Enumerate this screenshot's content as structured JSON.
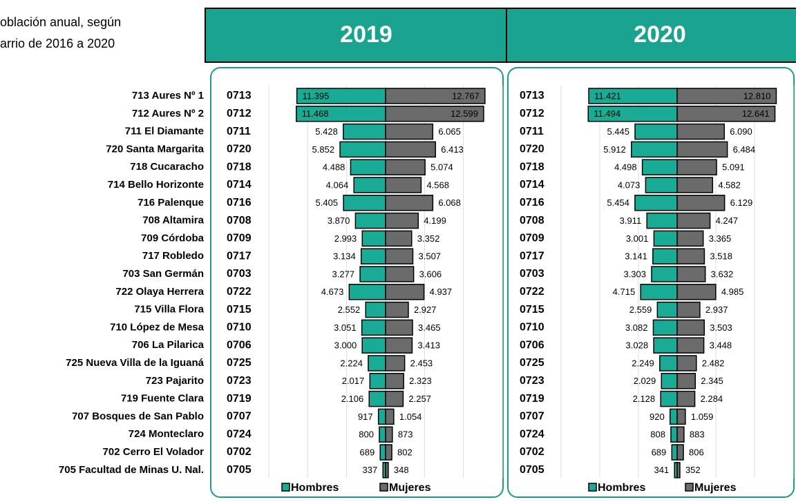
{
  "title": [
    "oblación anual, según",
    "arrio de 2016 a 2020"
  ],
  "barrios": [
    "713 Aures Nº 1",
    "712 Aures Nº 2",
    "711 El Diamante",
    "720 Santa Margarita",
    "718 Cucaracho",
    "714 Bello Horizonte",
    "716 Palenque",
    "708 Altamira",
    "709 Córdoba",
    "717 Robledo",
    "703 San Germán",
    "722 Olaya Herrera",
    "715 Villa Flora",
    "710 López de Mesa",
    "706 La Pilarica",
    "725 Nueva Villa de la Iguaná",
    "723 Pajarito",
    "719 Fuente Clara",
    "707 Bosques de San Pablo",
    "724 Monteclaro",
    "702 Cerro El Volador",
    "705 Facultad  de Minas U. Nal."
  ],
  "chart_data": [
    {
      "type": "bar",
      "title": "2019",
      "categories": [
        "0713",
        "0712",
        "0711",
        "0720",
        "0718",
        "0714",
        "0716",
        "0708",
        "0709",
        "0717",
        "0703",
        "0722",
        "0715",
        "0710",
        "0706",
        "0725",
        "0723",
        "0719",
        "0707",
        "0724",
        "0702",
        "0705"
      ],
      "xlim": [
        -15000,
        15000
      ],
      "xticks": [
        -15000,
        -10000,
        -5000,
        0,
        5000,
        10000,
        15000
      ],
      "grid": true,
      "series": [
        {
          "name": "Hombres",
          "color": "#1aab97",
          "side": "left",
          "values": [
            11395,
            11468,
            5428,
            5852,
            4488,
            4064,
            5405,
            3870,
            2993,
            3134,
            3277,
            4673,
            2552,
            3051,
            3000,
            2224,
            2017,
            2106,
            917,
            800,
            689,
            337
          ],
          "value_labels": [
            "11.395",
            "11.468",
            "5.428",
            "5.852",
            "4.488",
            "4.064",
            "5.405",
            "3.870",
            "2.993",
            "3.134",
            "3.277",
            "4.673",
            "2.552",
            "3.051",
            "3.000",
            "2.224",
            "2.017",
            "2.106",
            "917",
            "800",
            "689",
            "337"
          ]
        },
        {
          "name": "Mujeres",
          "color": "#6b6b6b",
          "side": "right",
          "values": [
            12767,
            12599,
            6065,
            6413,
            5074,
            4568,
            6068,
            4199,
            3352,
            3507,
            3606,
            4937,
            2927,
            3465,
            3413,
            2453,
            2323,
            2257,
            1054,
            873,
            802,
            348
          ],
          "value_labels": [
            "12.767",
            "12.599",
            "6.065",
            "6.413",
            "5.074",
            "4.568",
            "6.068",
            "4.199",
            "3.352",
            "3.507",
            "3.606",
            "4.937",
            "2.927",
            "3.465",
            "3.413",
            "2.453",
            "2.323",
            "2.257",
            "1.054",
            "873",
            "802",
            "348"
          ]
        }
      ]
    },
    {
      "type": "bar",
      "title": "2020",
      "categories": [
        "0713",
        "0712",
        "0711",
        "0720",
        "0718",
        "0714",
        "0716",
        "0708",
        "0709",
        "0717",
        "0703",
        "0722",
        "0715",
        "0710",
        "0706",
        "0725",
        "0723",
        "0719",
        "0707",
        "0724",
        "0702",
        "0705"
      ],
      "xlim": [
        -15000,
        15000
      ],
      "xticks": [
        -15000,
        -10000,
        -5000,
        0,
        5000,
        10000,
        15000
      ],
      "grid": true,
      "series": [
        {
          "name": "Hombres",
          "color": "#1aab97",
          "side": "left",
          "values": [
            11421,
            11494,
            5445,
            5912,
            4498,
            4073,
            5454,
            3911,
            3001,
            3141,
            3303,
            4715,
            2559,
            3082,
            3028,
            2249,
            2029,
            2128,
            920,
            808,
            689,
            341
          ],
          "value_labels": [
            "11.421",
            "11.494",
            "5.445",
            "5.912",
            "4.498",
            "4.073",
            "5.454",
            "3.911",
            "3.001",
            "3.141",
            "3.303",
            "4.715",
            "2.559",
            "3.082",
            "3.028",
            "2.249",
            "2.029",
            "2.128",
            "920",
            "808",
            "689",
            "341"
          ]
        },
        {
          "name": "Mujeres",
          "color": "#6b6b6b",
          "side": "right",
          "values": [
            12810,
            12641,
            6090,
            6484,
            5091,
            4582,
            6129,
            4247,
            3365,
            3518,
            3632,
            4985,
            2937,
            3503,
            3448,
            2482,
            2345,
            2284,
            1059,
            883,
            806,
            352
          ],
          "value_labels": [
            "12.810",
            "12.641",
            "6.090",
            "6.484",
            "5.091",
            "4.582",
            "6.129",
            "4.247",
            "3.365",
            "3.518",
            "3.632",
            "4.985",
            "2.937",
            "3.503",
            "3.448",
            "2.482",
            "2.345",
            "2.284",
            "1.059",
            "883",
            "806",
            "352"
          ]
        }
      ]
    }
  ]
}
